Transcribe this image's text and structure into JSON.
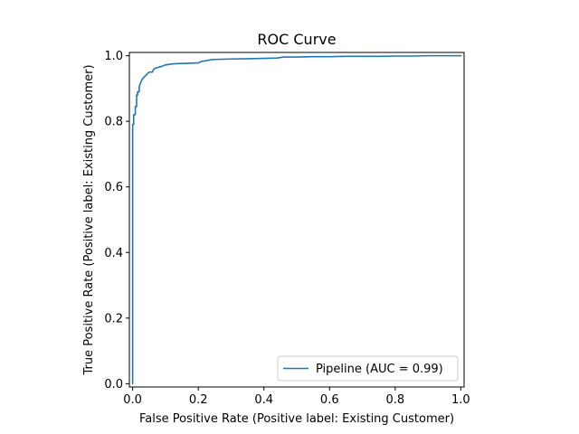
{
  "chart_data": {
    "type": "line",
    "title": "ROC Curve",
    "xlabel": "False Positive Rate (Positive label: Existing Customer)",
    "ylabel": "True Positive Rate (Positive label: Existing Customer)",
    "xlim": [
      -0.01,
      1.01
    ],
    "ylim": [
      -0.01,
      1.01
    ],
    "xticks": [
      0.0,
      0.2,
      0.4,
      0.6,
      0.8,
      1.0
    ],
    "xtick_labels": [
      "0.0",
      "0.2",
      "0.4",
      "0.6",
      "0.8",
      "1.0"
    ],
    "yticks": [
      0.0,
      0.2,
      0.4,
      0.6,
      0.8,
      1.0
    ],
    "ytick_labels": [
      "0.0",
      "0.2",
      "0.4",
      "0.6",
      "0.8",
      "1.0"
    ],
    "grid": false,
    "legend_position": "lower right",
    "series": [
      {
        "name": "Pipeline (AUC = 0.99)",
        "color": "#1f77b4",
        "x": [
          0.0,
          0.0,
          0.003,
          0.003,
          0.008,
          0.008,
          0.012,
          0.012,
          0.015,
          0.015,
          0.02,
          0.02,
          0.025,
          0.03,
          0.04,
          0.05,
          0.06,
          0.065,
          0.07,
          0.08,
          0.09,
          0.1,
          0.12,
          0.14,
          0.17,
          0.2,
          0.21,
          0.22,
          0.24,
          0.26,
          0.3,
          0.35,
          0.4,
          0.44,
          0.46,
          0.5,
          0.55,
          0.6,
          0.65,
          0.7,
          0.75,
          0.8,
          0.85,
          0.9,
          0.95,
          1.0
        ],
        "y": [
          0.0,
          0.79,
          0.79,
          0.82,
          0.82,
          0.845,
          0.845,
          0.88,
          0.88,
          0.89,
          0.89,
          0.905,
          0.92,
          0.93,
          0.94,
          0.95,
          0.95,
          0.96,
          0.962,
          0.965,
          0.968,
          0.972,
          0.975,
          0.976,
          0.977,
          0.978,
          0.983,
          0.984,
          0.988,
          0.989,
          0.99,
          0.991,
          0.992,
          0.993,
          0.996,
          0.996,
          0.997,
          0.997,
          0.998,
          0.998,
          0.998,
          0.999,
          0.999,
          1.0,
          1.0,
          1.0
        ]
      }
    ]
  }
}
